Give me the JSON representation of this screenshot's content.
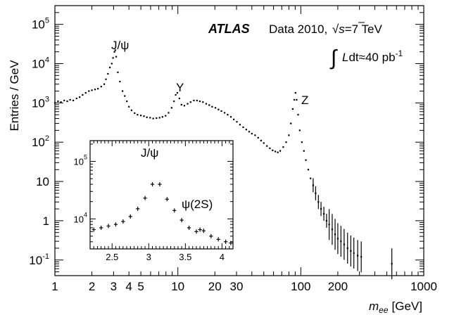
{
  "chart_data": [
    {
      "type": "scatter",
      "xlabel_main": "m",
      "xlabel_sub": "ee",
      "xlabel_unit": "[GeV]",
      "ylabel": "Entries / GeV",
      "xscale": "log",
      "yscale": "log",
      "xlim": [
        1,
        1000
      ],
      "ylim": [
        0.04,
        300000
      ],
      "x_ticks": [
        {
          "v": 1,
          "label": "1"
        },
        {
          "v": 2,
          "label": "2"
        },
        {
          "v": 3,
          "label": "3"
        },
        {
          "v": 4,
          "label": "4"
        },
        {
          "v": 5,
          "label": "5"
        },
        {
          "v": 10,
          "label": "10"
        },
        {
          "v": 20,
          "label": "20"
        },
        {
          "v": 30,
          "label": "30"
        },
        {
          "v": 100,
          "label": "100"
        },
        {
          "v": 200,
          "label": "200"
        },
        {
          "v": 1000,
          "label": "1000"
        }
      ],
      "y_ticks": [
        {
          "v": 0.1,
          "base": "10",
          "exp": "-1"
        },
        {
          "v": 1,
          "base": "1",
          "exp": ""
        },
        {
          "v": 10,
          "base": "10",
          "exp": ""
        },
        {
          "v": 100,
          "base": "10",
          "exp": "2"
        },
        {
          "v": 1000,
          "base": "10",
          "exp": "3"
        },
        {
          "v": 10000,
          "base": "10",
          "exp": "4"
        },
        {
          "v": 100000,
          "base": "10",
          "exp": "5"
        }
      ],
      "annotations": {
        "experiment": "ATLAS",
        "dataset": "Data 2010, ",
        "sqrt_s": "s",
        "energy": "=7 TeV",
        "lumi_L": "L",
        "lumi_dt": "dt≈40 pb",
        "lumi_exp": "-1",
        "peaks": [
          {
            "label": "J/ψ",
            "x": 3.1
          },
          {
            "label": "Υ",
            "x": 9.6
          },
          {
            "label": "Z",
            "x": 91
          }
        ]
      },
      "series": [
        {
          "points": [
            [
              1.0,
              1000
            ],
            [
              1.06,
              1100
            ],
            [
              1.12,
              1050
            ],
            [
              1.19,
              1150
            ],
            [
              1.26,
              1100
            ],
            [
              1.33,
              1200
            ],
            [
              1.41,
              1150
            ],
            [
              1.5,
              1300
            ],
            [
              1.59,
              1400
            ],
            [
              1.68,
              1600
            ],
            [
              1.78,
              1800
            ],
            [
              1.89,
              2000
            ],
            [
              2.0,
              2100
            ],
            [
              2.12,
              2200
            ],
            [
              2.24,
              2300
            ],
            [
              2.38,
              2600
            ],
            [
              2.52,
              3000
            ],
            [
              2.6,
              4000
            ],
            [
              2.7,
              5500
            ],
            [
              2.8,
              8000
            ],
            [
              2.9,
              10000
            ],
            [
              2.97,
              14000
            ],
            [
              3.05,
              20000
            ],
            [
              3.1,
              22000
            ],
            [
              3.15,
              15000
            ],
            [
              3.25,
              6000
            ],
            [
              3.38,
              3500
            ],
            [
              3.55,
              2000
            ],
            [
              3.7,
              1500
            ],
            [
              3.85,
              1100
            ],
            [
              4.0,
              800
            ],
            [
              4.2,
              650
            ],
            [
              4.45,
              550
            ],
            [
              4.7,
              500
            ],
            [
              5.0,
              480
            ],
            [
              5.3,
              460
            ],
            [
              5.6,
              430
            ],
            [
              5.95,
              420
            ],
            [
              6.3,
              400
            ],
            [
              6.7,
              410
            ],
            [
              7.1,
              420
            ],
            [
              7.5,
              440
            ],
            [
              7.95,
              470
            ],
            [
              8.4,
              560
            ],
            [
              8.9,
              750
            ],
            [
              9.3,
              1100
            ],
            [
              9.6,
              1600
            ],
            [
              9.9,
              1800
            ],
            [
              10.3,
              1300
            ],
            [
              10.7,
              900
            ],
            [
              11.3,
              850
            ],
            [
              12.0,
              950
            ],
            [
              12.7,
              1050
            ],
            [
              13.5,
              1150
            ],
            [
              14.3,
              1150
            ],
            [
              15.1,
              1100
            ],
            [
              16.0,
              1050
            ],
            [
              17.0,
              950
            ],
            [
              18.0,
              880
            ],
            [
              19.0,
              800
            ],
            [
              20.2,
              750
            ],
            [
              21.4,
              680
            ],
            [
              22.6,
              620
            ],
            [
              24.0,
              560
            ],
            [
              25.4,
              500
            ],
            [
              27.0,
              440
            ],
            [
              28.5,
              380
            ],
            [
              30.2,
              330
            ],
            [
              32.0,
              280
            ],
            [
              34.0,
              240
            ],
            [
              36.0,
              210
            ],
            [
              38.0,
              185
            ],
            [
              40.0,
              165
            ],
            [
              42.5,
              150
            ],
            [
              45.0,
              130
            ],
            [
              47.5,
              110
            ],
            [
              50.0,
              95
            ],
            [
              53.0,
              80
            ],
            [
              56.0,
              70
            ],
            [
              59.0,
              62
            ],
            [
              62.0,
              58
            ],
            [
              65.0,
              55
            ],
            [
              68.0,
              60
            ],
            [
              72.0,
              75
            ],
            [
              76.0,
              100
            ],
            [
              80.0,
              150
            ],
            [
              83.0,
              300
            ],
            [
              86.0,
              700
            ],
            [
              88.5,
              1200
            ],
            [
              90.5,
              1800
            ],
            [
              92.5,
              1200
            ],
            [
              95.0,
              500
            ],
            [
              98.0,
              200
            ],
            [
              102.0,
              100
            ],
            [
              106.0,
              60
            ],
            [
              110.0,
              35
            ],
            [
              115.0,
              20
            ],
            [
              120.0,
              12
            ],
            [
              126.0,
              8
            ],
            [
              132.0,
              5
            ],
            [
              139.0,
              3
            ],
            [
              146.0,
              2
            ],
            [
              154.0,
              1.5
            ],
            [
              162.0,
              1.0
            ],
            [
              170.0,
              0.8
            ],
            [
              180.0,
              0.6
            ],
            [
              190.0,
              0.45
            ],
            [
              200.0,
              0.35
            ],
            [
              212.0,
              0.3
            ],
            [
              225.0,
              0.25
            ],
            [
              240.0,
              0.2
            ],
            [
              255.0,
              0.17
            ],
            [
              270.0,
              0.15
            ],
            [
              290.0,
              0.13
            ],
            [
              310.0,
              0.12
            ],
            [
              550.0,
              0.08
            ]
          ]
        }
      ]
    },
    {
      "type": "scatter",
      "xscale": "linear",
      "yscale": "log",
      "xlim": [
        2.2,
        4.15
      ],
      "ylim": [
        3000,
        230000
      ],
      "x_ticks": [
        {
          "v": 2.5,
          "label": "2.5"
        },
        {
          "v": 3,
          "label": "3"
        },
        {
          "v": 3.5,
          "label": "3.5"
        },
        {
          "v": 4,
          "label": "4"
        }
      ],
      "y_ticks": [
        {
          "v": 10000,
          "base": "10",
          "exp": "4"
        },
        {
          "v": 100000,
          "base": "10",
          "exp": "5"
        }
      ],
      "peaks": [
        {
          "label": "J/ψ",
          "x": 3.1
        },
        {
          "label": "ψ(2S)",
          "x": 3.69
        }
      ],
      "series": [
        {
          "points": [
            [
              2.25,
              6500
            ],
            [
              2.35,
              7000
            ],
            [
              2.45,
              7500
            ],
            [
              2.55,
              8000
            ],
            [
              2.65,
              9000
            ],
            [
              2.75,
              11000
            ],
            [
              2.85,
              15000
            ],
            [
              2.95,
              23000
            ],
            [
              3.05,
              40000
            ],
            [
              3.15,
              40000
            ],
            [
              3.25,
              22000
            ],
            [
              3.35,
              14000
            ],
            [
              3.45,
              9500
            ],
            [
              3.55,
              7000
            ],
            [
              3.65,
              6000
            ],
            [
              3.7,
              6500
            ],
            [
              3.75,
              6200
            ],
            [
              3.85,
              5000
            ],
            [
              3.95,
              4400
            ],
            [
              4.05,
              4000
            ],
            [
              4.12,
              3800
            ]
          ]
        }
      ]
    }
  ]
}
